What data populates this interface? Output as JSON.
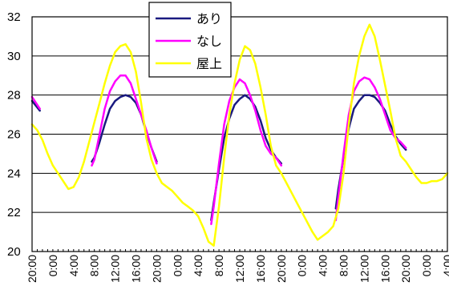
{
  "chart_data": {
    "type": "line",
    "title": "",
    "xlabel": "",
    "ylabel": "",
    "ylim": [
      20,
      32
    ],
    "y_ticks": [
      20,
      22,
      24,
      26,
      28,
      30,
      32
    ],
    "x_ticks": [
      "20:00",
      "0:00",
      "4:00",
      "8:00",
      "12:00",
      "16:00",
      "20:00",
      "0:00",
      "4:00",
      "8:00",
      "12:00",
      "16:00",
      "20:00",
      "0:00",
      "4:00",
      "8:00",
      "12:00",
      "16:00",
      "20:00",
      "0:00",
      "4:00"
    ],
    "x_range_hours": [
      0,
      80
    ],
    "grid": "horizontal",
    "legend_placement": "top-center",
    "series": [
      {
        "name": "あり",
        "color": "#1a1a80",
        "segments": [
          {
            "x": [
              0,
              1.5
            ],
            "y": [
              27.7,
              27.2
            ]
          },
          {
            "x": [
              11.5,
              12,
              13,
              14,
              15,
              16,
              17,
              18,
              19,
              20,
              21,
              22,
              23,
              24
            ],
            "y": [
              24.6,
              24.8,
              25.6,
              26.5,
              27.3,
              27.7,
              27.9,
              28.0,
              27.9,
              27.6,
              27.0,
              26.1,
              25.3,
              24.6
            ]
          },
          {
            "x": [
              34.5,
              35,
              36,
              37,
              38,
              39,
              40,
              41,
              42,
              43,
              44,
              45,
              46,
              47,
              48
            ],
            "y": [
              21.6,
              22.5,
              24.2,
              25.8,
              26.8,
              27.5,
              27.8,
              28.0,
              27.8,
              27.4,
              26.7,
              25.8,
              25.2,
              24.8,
              24.5
            ]
          },
          {
            "x": [
              58.5,
              59,
              60,
              61,
              62,
              63,
              64,
              65,
              66,
              67,
              68,
              69,
              70,
              71,
              72
            ],
            "y": [
              22.2,
              23.2,
              24.8,
              26.3,
              27.3,
              27.7,
              28.0,
              28.0,
              27.9,
              27.6,
              27.2,
              26.5,
              25.9,
              25.5,
              25.2
            ]
          }
        ]
      },
      {
        "name": "なし",
        "color": "#ff00ff",
        "segments": [
          {
            "x": [
              0,
              1.5
            ],
            "y": [
              27.9,
              27.3
            ]
          },
          {
            "x": [
              11.5,
              12,
              13,
              14,
              15,
              16,
              17,
              18,
              19,
              20,
              21,
              22,
              23,
              24
            ],
            "y": [
              24.4,
              24.7,
              26.0,
              27.3,
              28.2,
              28.7,
              29.0,
              29.0,
              28.6,
              27.8,
              27.0,
              26.2,
              25.3,
              24.5
            ]
          },
          {
            "x": [
              34.5,
              35,
              36,
              37,
              38,
              39,
              40,
              41,
              42,
              43,
              44,
              45,
              46,
              47,
              48
            ],
            "y": [
              21.4,
              22.3,
              24.5,
              26.5,
              27.7,
              28.4,
              28.8,
              28.6,
              28.0,
              27.2,
              26.2,
              25.4,
              25.0,
              24.8,
              24.4
            ]
          },
          {
            "x": [
              58.5,
              59,
              60,
              61,
              62,
              63,
              64,
              65,
              66,
              67,
              68,
              69,
              70,
              71,
              72
            ],
            "y": [
              21.6,
              22.8,
              25.0,
              27.0,
              28.2,
              28.7,
              28.9,
              28.8,
              28.4,
              27.8,
              27.0,
              26.2,
              25.8,
              25.6,
              25.3
            ]
          }
        ]
      },
      {
        "name": "屋上",
        "color": "#ffff00",
        "segments": [
          {
            "x": [
              0,
              1,
              2,
              3,
              4,
              5,
              6,
              7,
              8,
              9,
              10,
              11,
              12,
              13,
              14,
              15,
              16,
              17,
              18,
              19,
              20,
              21,
              22,
              23,
              24,
              25,
              26,
              27,
              28,
              29,
              30,
              31,
              32,
              33,
              34,
              35,
              36,
              37,
              38,
              39,
              40,
              41,
              42,
              43,
              44,
              45,
              46,
              47,
              48,
              49,
              50,
              51,
              52,
              53,
              54,
              55,
              56,
              57,
              58,
              59,
              60,
              61,
              62,
              63,
              64,
              65,
              66,
              67,
              68,
              69,
              70,
              71,
              72,
              73,
              74,
              75,
              76,
              77,
              78,
              79,
              80
            ],
            "y": [
              26.5,
              26.2,
              25.7,
              25.0,
              24.4,
              24.0,
              23.6,
              23.2,
              23.3,
              23.8,
              24.6,
              25.6,
              26.6,
              27.6,
              28.6,
              29.5,
              30.2,
              30.5,
              30.6,
              30.2,
              29.2,
              27.6,
              25.8,
              24.7,
              24.0,
              23.5,
              23.3,
              23.1,
              22.8,
              22.5,
              22.3,
              22.1,
              21.8,
              21.2,
              20.5,
              20.3,
              22.3,
              24.8,
              27.0,
              28.6,
              29.8,
              30.5,
              30.3,
              29.6,
              28.4,
              27.0,
              25.4,
              24.4,
              24.0,
              23.5,
              23.0,
              22.5,
              22.0,
              21.5,
              21.0,
              20.6,
              20.8,
              21.0,
              21.3,
              22.2,
              24.0,
              26.5,
              28.6,
              30.0,
              31.0,
              31.6,
              31.0,
              29.8,
              28.5,
              27.2,
              25.8,
              24.9,
              24.6,
              24.2,
              23.8,
              23.5,
              23.5,
              23.6,
              23.6,
              23.7,
              24.0
            ]
          }
        ]
      }
    ]
  }
}
